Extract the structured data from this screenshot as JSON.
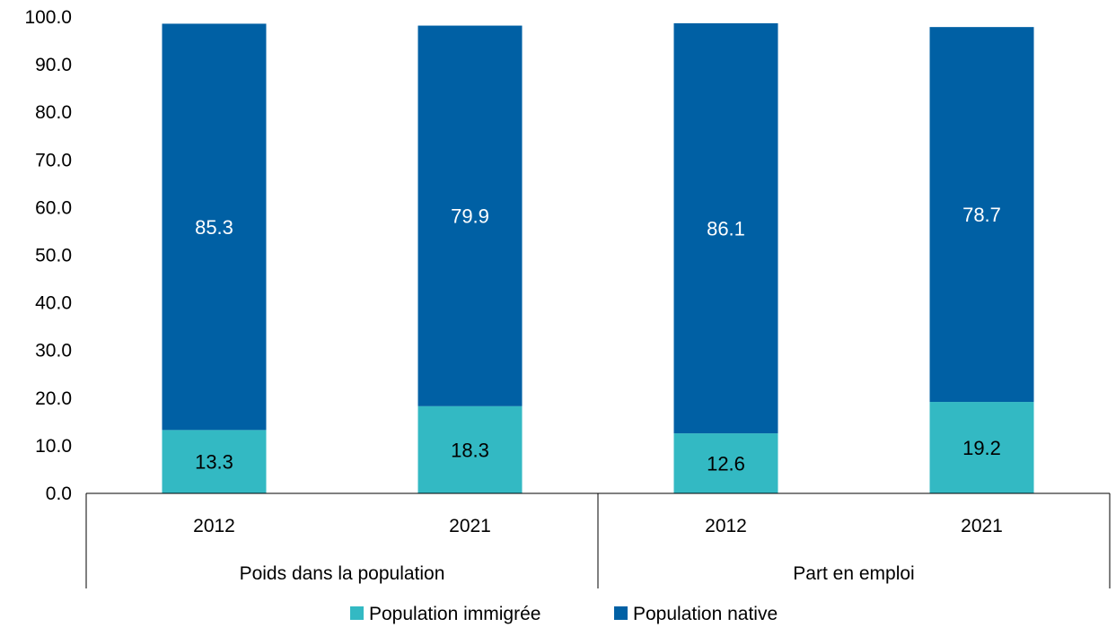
{
  "chart_data": {
    "type": "bar",
    "stacked": true,
    "y_tick_labels": [
      "0.0",
      "10.0",
      "20.0",
      "30.0",
      "40.0",
      "50.0",
      "60.0",
      "70.0",
      "80.0",
      "90.0",
      "100.0"
    ],
    "ylim": [
      0,
      100
    ],
    "grid": false,
    "legend_position": "bottom",
    "groups": [
      {
        "label": "Poids dans la population",
        "categories": [
          "2012",
          "2021"
        ]
      },
      {
        "label": "Part en emploi",
        "categories": [
          "2012",
          "2021"
        ]
      }
    ],
    "categories": [
      "2012",
      "2021",
      "2012",
      "2021"
    ],
    "series": [
      {
        "name": "Population immigrée",
        "color": "#33b9c3",
        "label_color": "#000000",
        "values": [
          13.3,
          18.3,
          12.6,
          19.2
        ]
      },
      {
        "name": "Population native",
        "color": "#0060a4",
        "label_color": "#ffffff",
        "values": [
          85.3,
          79.9,
          86.1,
          78.7
        ]
      }
    ],
    "value_labels": [
      [
        "13.3",
        "18.3",
        "12.6",
        "19.2"
      ],
      [
        "85.3",
        "79.9",
        "86.1",
        "78.7"
      ]
    ]
  }
}
